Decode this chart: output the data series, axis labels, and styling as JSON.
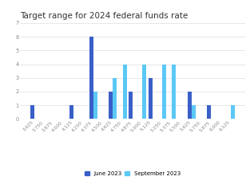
{
  "title": "Target range for 2024 federal funds rate",
  "categories": [
    "3.625",
    "3.750",
    "3.875",
    "4.000",
    "4.125",
    "4.250",
    "4.375",
    "4.500",
    "4.625",
    "4.750",
    "4.875",
    "5.000",
    "5.125",
    "5.250",
    "5.375",
    "5.500",
    "5.625",
    "5.750",
    "5.875",
    "6.000",
    "6.125"
  ],
  "june_2023": [
    1,
    0,
    0,
    0,
    1,
    0,
    6,
    0,
    2,
    0,
    2,
    0,
    3,
    0,
    0,
    0,
    2,
    0,
    1,
    0,
    0
  ],
  "september_2023": [
    0,
    0,
    0,
    0,
    0,
    0,
    2,
    0,
    3,
    4,
    0,
    4,
    0,
    4,
    4,
    0,
    1,
    0,
    0,
    0,
    1
  ],
  "june_color": "#3a5fc8",
  "september_color": "#5bc8f5",
  "ylim": [
    0,
    7
  ],
  "yticks": [
    0,
    1,
    2,
    3,
    4,
    5,
    6,
    7
  ],
  "background_color": "#ffffff",
  "title_fontsize": 7.5,
  "tick_fontsize": 4.2,
  "legend_fontsize": 5.0,
  "legend_labels": [
    "June 2023",
    "September 2023"
  ]
}
